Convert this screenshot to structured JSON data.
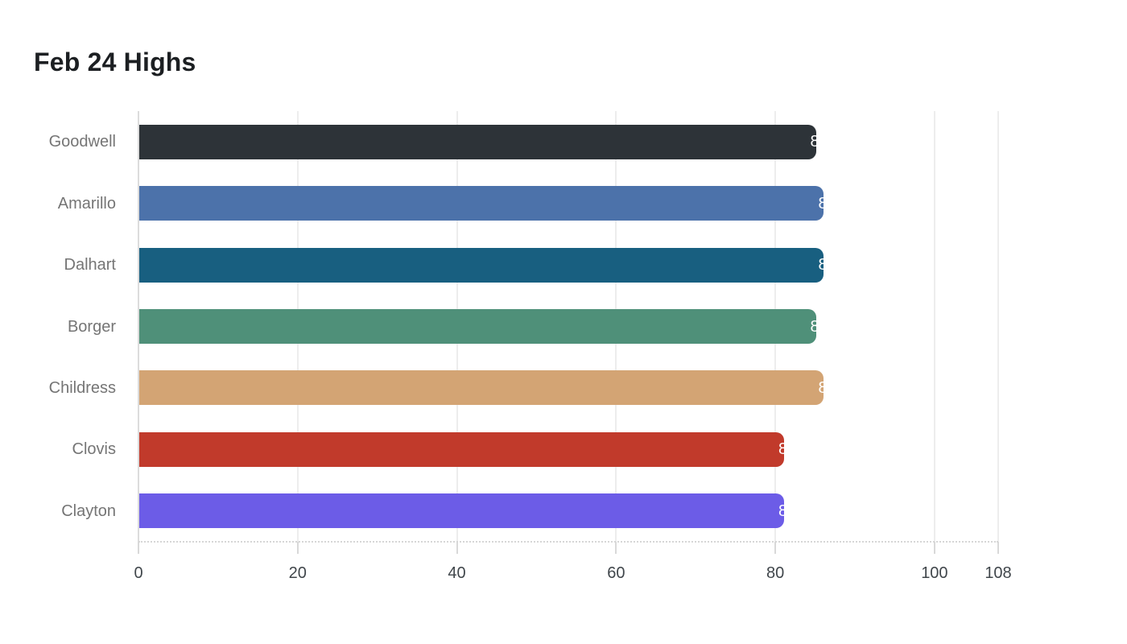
{
  "chart_data": {
    "type": "bar",
    "orientation": "horizontal",
    "title": "Feb 24 Highs",
    "categories": [
      "Goodwell",
      "Amarillo",
      "Dalhart",
      "Borger",
      "Childress",
      "Clovis",
      "Clayton"
    ],
    "values": [
      85,
      86,
      86,
      85,
      86,
      81,
      81
    ],
    "bar_colors": [
      "#2d3338",
      "#4c72aa",
      "#185f80",
      "#4f9079",
      "#d3a474",
      "#c13a2b",
      "#6c5ce7"
    ],
    "value_label_color": "#ffffff",
    "xlabel": "",
    "ylabel": "",
    "xlim": [
      0,
      108
    ],
    "xticks": [
      0,
      20,
      40,
      60,
      80,
      100,
      108
    ],
    "grid": true,
    "legend": false,
    "colors": {
      "title_text": "#1c1f22",
      "category_label_text": "#757575",
      "tick_label_text": "#40464b",
      "gridline": "#ededed",
      "zero_line": "#dcdcdc",
      "axis_line": "#d6d6d6",
      "background": "#ffffff"
    }
  }
}
